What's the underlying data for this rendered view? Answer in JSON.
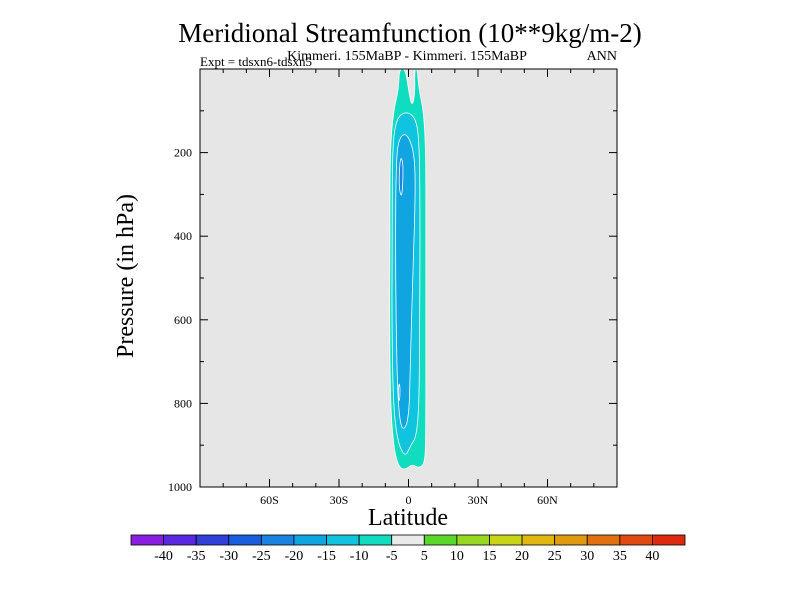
{
  "chart_data": {
    "type": "contour",
    "title": "Meridional Streamfunction (10**9kg/m-2)",
    "subtitle_left": "Expt = tdsxn6-tdsxn5",
    "subtitle_center": "Kimmeri. 155MaBP - Kimmeri. 155MaBP",
    "subtitle_right": "ANN",
    "xlabel": "Latitude",
    "ylabel": "Pressure (in hPa)",
    "xlim": [
      -90,
      90
    ],
    "ylim": [
      1000,
      0
    ],
    "x_ticks": [
      {
        "value": -60,
        "label": "60S"
      },
      {
        "value": -30,
        "label": "30S"
      },
      {
        "value": 0,
        "label": "0"
      },
      {
        "value": 30,
        "label": "30N"
      },
      {
        "value": 60,
        "label": "60N"
      }
    ],
    "y_ticks": [
      {
        "value": 200,
        "label": "200"
      },
      {
        "value": 400,
        "label": "400"
      },
      {
        "value": 600,
        "label": "600"
      },
      {
        "value": 800,
        "label": "800"
      },
      {
        "value": 1000,
        "label": "1000"
      }
    ],
    "background": "#e6e6e6",
    "colorbar": {
      "labels": [
        "-40",
        "-35",
        "-30",
        "-25",
        "-20",
        "-15",
        "-10",
        "-5",
        "5",
        "10",
        "15",
        "20",
        "25",
        "30",
        "35",
        "40"
      ],
      "colors": [
        "#8a1ee0",
        "#5a28e0",
        "#3040d8",
        "#1a5ee0",
        "#1a82e0",
        "#10a4e0",
        "#10c4e0",
        "#10dcc0",
        "#eaeaea",
        "#5ad82a",
        "#98d820",
        "#c8d418",
        "#e0b810",
        "#e09a10",
        "#e07010",
        "#e04a10",
        "#e02810"
      ]
    },
    "regions": [
      {
        "level": -5,
        "color": "#10dcc0",
        "outline": [
          [
            -4,
            0
          ],
          [
            -4.3,
            50
          ],
          [
            -6.5,
            100
          ],
          [
            -8,
            200
          ],
          [
            -8,
            400
          ],
          [
            -8.2,
            600
          ],
          [
            -7.8,
            800
          ],
          [
            -6.5,
            900
          ],
          [
            -4.5,
            950
          ],
          [
            -1.5,
            960
          ],
          [
            1.5,
            945
          ],
          [
            4.5,
            955
          ],
          [
            6.8,
            945
          ],
          [
            7.5,
            900
          ],
          [
            7.5,
            600
          ],
          [
            7.5,
            400
          ],
          [
            7.5,
            200
          ],
          [
            6.5,
            100
          ],
          [
            4.5,
            50
          ],
          [
            3.8,
            0
          ],
          [
            2.6,
            0
          ],
          [
            2.8,
            60
          ],
          [
            1.5,
            90
          ],
          [
            0.3,
            60
          ],
          [
            -1.3,
            0
          ]
        ]
      },
      {
        "level": -10,
        "color": "#10c4e0",
        "outline": [
          [
            -5.5,
            120
          ],
          [
            -7,
            200
          ],
          [
            -7,
            400
          ],
          [
            -7.2,
            600
          ],
          [
            -6.6,
            800
          ],
          [
            -4.8,
            890
          ],
          [
            -1.5,
            930
          ],
          [
            1,
            900
          ],
          [
            3.4,
            880
          ],
          [
            4.6,
            800
          ],
          [
            4.8,
            600
          ],
          [
            5,
            400
          ],
          [
            4.8,
            200
          ],
          [
            3.6,
            120
          ],
          [
            -1,
            100
          ]
        ]
      },
      {
        "level": -15,
        "color": "#10a4e0",
        "outline": [
          [
            -4.6,
            170
          ],
          [
            -5.4,
            250
          ],
          [
            -5.6,
            400
          ],
          [
            -5.4,
            600
          ],
          [
            -4.6,
            800
          ],
          [
            -2.8,
            870
          ],
          [
            0.2,
            840
          ],
          [
            0.8,
            700
          ],
          [
            1.8,
            500
          ],
          [
            3,
            300
          ],
          [
            2.6,
            200
          ],
          [
            -1,
            150
          ]
        ]
      },
      {
        "level": -20,
        "color": "#1a82e0",
        "outline": [
          [
            -3.6,
            210
          ],
          [
            -4.2,
            280
          ],
          [
            -3,
            310
          ],
          [
            -2.4,
            270
          ],
          [
            -2.4,
            220
          ]
        ]
      },
      {
        "level": -20,
        "color": "#1a82e0",
        "outline": [
          [
            -4.2,
            750
          ],
          [
            -4.4,
            790
          ],
          [
            -3.8,
            795
          ],
          [
            -3.6,
            760
          ]
        ]
      }
    ]
  }
}
